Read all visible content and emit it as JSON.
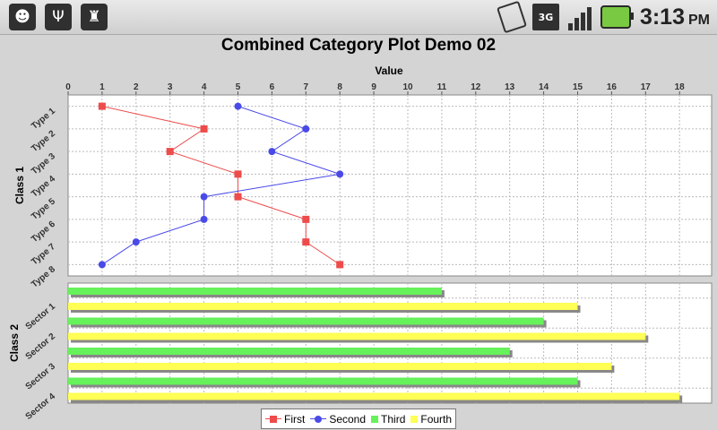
{
  "status_bar": {
    "left_icons": [
      "notification-icon",
      "usb-icon",
      "android-debug-icon"
    ],
    "right_icons": [
      "screen-rotation-icon",
      "3g-data-icon",
      "signal-icon",
      "battery-charging-icon"
    ],
    "network": "3G",
    "time": "3:13",
    "ampm": "PM"
  },
  "chart_data": {
    "type": "line",
    "title": "Combined Category Plot Demo 02",
    "value_axis": {
      "label": "Value",
      "range": [
        0,
        18
      ],
      "ticks": [
        0,
        1,
        2,
        3,
        4,
        5,
        6,
        7,
        8,
        9,
        10,
        11,
        12,
        13,
        14,
        15,
        16,
        17,
        18
      ],
      "position": "top"
    },
    "grid": true,
    "legend": "bottom",
    "subplots": [
      {
        "label": "Class 1",
        "type": "line",
        "categories": [
          "Type 1",
          "Type 2",
          "Type 3",
          "Type 4",
          "Type 5",
          "Type 6",
          "Type 7",
          "Type 8"
        ],
        "series": [
          {
            "name": "First",
            "color": "#ee4b4b",
            "marker": "square",
            "values": [
              1,
              4,
              3,
              5,
              5,
              7,
              7,
              8
            ]
          },
          {
            "name": "Second",
            "color": "#4a4ae8",
            "marker": "circle",
            "values": [
              5,
              7,
              6,
              8,
              4,
              4,
              2,
              1
            ]
          }
        ]
      },
      {
        "label": "Class 2",
        "type": "bar",
        "orientation": "horizontal",
        "categories": [
          "Sector 1",
          "Sector 2",
          "Sector 3",
          "Sector 4"
        ],
        "series": [
          {
            "name": "Third",
            "color": "#66f25a",
            "values": [
              11,
              14,
              13,
              15
            ]
          },
          {
            "name": "Fourth",
            "color": "#ffff55",
            "values": [
              15,
              17,
              16,
              18
            ]
          }
        ]
      }
    ]
  }
}
